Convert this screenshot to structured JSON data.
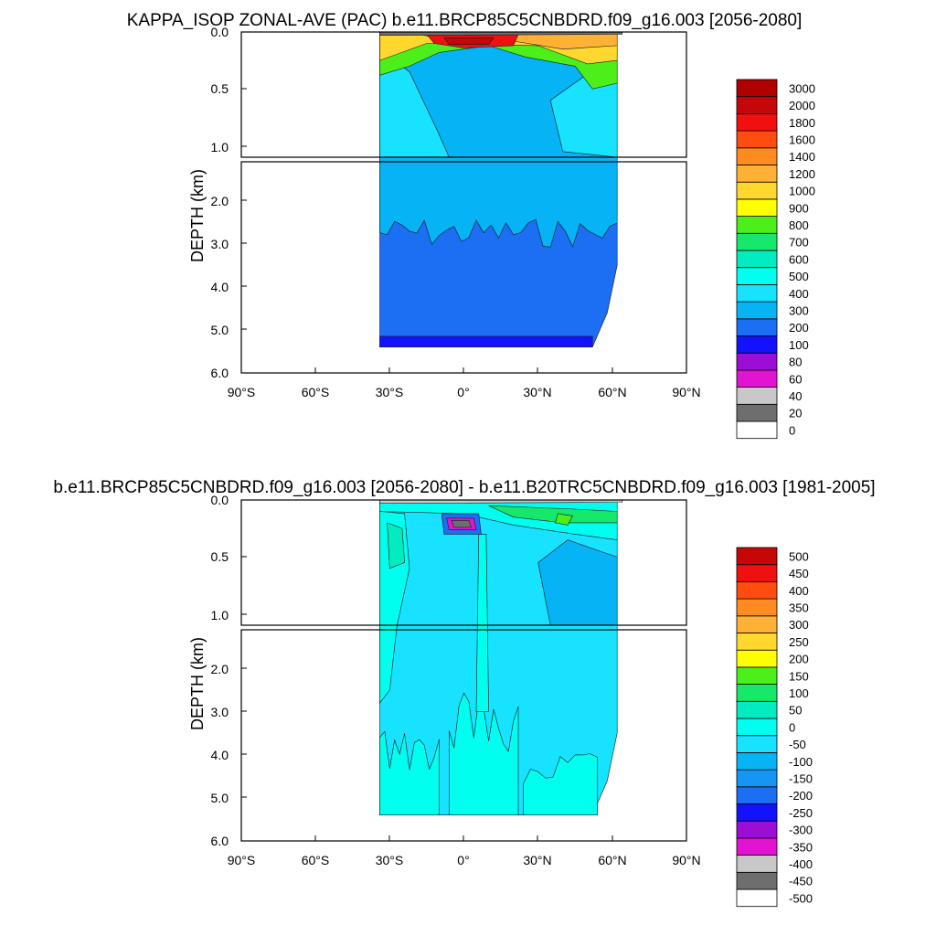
{
  "chart_data": [
    {
      "type": "heatmap",
      "title": "KAPPA_ISOP ZONAL-AVE (PAC) b.e11.BRCP85C5CNBDRD.f09_g16.003 [2056-2080]",
      "ylabel": "DEPTH (km)",
      "xlabel": "",
      "x_ticks": [
        "90°S",
        "60°S",
        "30°S",
        "0°",
        "30°N",
        "60°N",
        "90°N"
      ],
      "y_ticks_upper": [
        "0.0",
        "0.5",
        "1.0"
      ],
      "y_ticks_lower": [
        "2.0",
        "3.0",
        "4.0",
        "5.0",
        "6.0"
      ],
      "xlim": [
        -90,
        90
      ],
      "ylim_upper_km": [
        0,
        1.1
      ],
      "ylim_lower_km": [
        1.1,
        6.0
      ],
      "data_extent_lat": [
        -34,
        62
      ],
      "data_extent_depth_km": [
        0,
        5.4
      ],
      "levels": [
        "0",
        "20",
        "40",
        "60",
        "80",
        "100",
        "200",
        "300",
        "400",
        "500",
        "600",
        "700",
        "800",
        "900",
        "1000",
        "1200",
        "1400",
        "1600",
        "1800",
        "2000",
        "3000"
      ],
      "colors": [
        "#ffffff",
        "#6e6e6e",
        "#c8c8c8",
        "#e214d2",
        "#9a0ed6",
        "#1212ff",
        "#1c6ef2",
        "#06b3f5",
        "#17e2ff",
        "#00ffee",
        "#03ecc1",
        "#16e86b",
        "#4cef1a",
        "#ffff00",
        "#ffd72e",
        "#ffb135",
        "#fd8b22",
        "#ff4d12",
        "#f01010",
        "#c60707",
        "#b00000"
      ],
      "features": [
        {
          "region": "deep ocean below 1 km",
          "value_range": [
            200,
            400
          ]
        },
        {
          "region": "upper 1 km",
          "value_range": [
            400,
            600
          ]
        },
        {
          "region": "surface layer near equator",
          "value_range": [
            1400,
            3000
          ]
        },
        {
          "region": "bottom layer near 5.2 km",
          "value_range": [
            100,
            200
          ]
        }
      ]
    },
    {
      "type": "heatmap",
      "title": "b.e11.BRCP85C5CNBDRD.f09_g16.003 [2056-2080] - b.e11.B20TRC5CNBDRD.f09_g16.003 [1981-2005]",
      "ylabel": "DEPTH (km)",
      "xlabel": "",
      "x_ticks": [
        "90°S",
        "60°S",
        "30°S",
        "0°",
        "30°N",
        "60°N",
        "90°N"
      ],
      "y_ticks_upper": [
        "0.0",
        "0.5",
        "1.0"
      ],
      "y_ticks_lower": [
        "2.0",
        "3.0",
        "4.0",
        "5.0",
        "6.0"
      ],
      "xlim": [
        -90,
        90
      ],
      "ylim_upper_km": [
        0,
        1.1
      ],
      "ylim_lower_km": [
        1.1,
        6.0
      ],
      "data_extent_lat": [
        -34,
        62
      ],
      "data_extent_depth_km": [
        0,
        5.4
      ],
      "levels": [
        "-500",
        "-450",
        "-400",
        "-350",
        "-300",
        "-250",
        "-200",
        "-150",
        "-100",
        "-50",
        "0",
        "50",
        "100",
        "150",
        "200",
        "250",
        "300",
        "350",
        "400",
        "450",
        "500"
      ],
      "colors": [
        "#ffffff",
        "#6e6e6e",
        "#c8c8c8",
        "#e214d2",
        "#9a0ed6",
        "#1212ff",
        "#1c6ef2",
        "#1496f2",
        "#06b3f5",
        "#17e2ff",
        "#00ffee",
        "#03ecc1",
        "#16e86b",
        "#4cef1a",
        "#ffff00",
        "#ffd72e",
        "#ffb135",
        "#fd8b22",
        "#ff4d12",
        "#f01010",
        "#c60707"
      ],
      "features": [
        {
          "region": "most of the basin",
          "value_range": [
            -50,
            0
          ]
        },
        {
          "region": "deep equatorial and southern columns",
          "value_range": [
            0,
            50
          ]
        },
        {
          "region": "subsurface core near 5°S at 0.2 km",
          "value_range": [
            -500,
            -300
          ]
        },
        {
          "region": "surface band",
          "value_range": [
            50,
            350
          ]
        }
      ]
    }
  ]
}
